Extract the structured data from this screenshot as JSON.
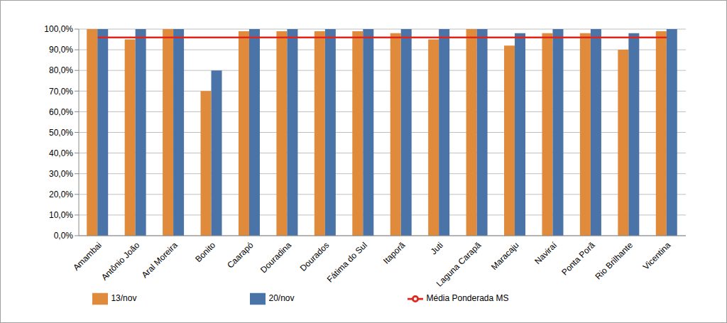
{
  "chart_data": {
    "type": "bar",
    "categories": [
      "Amambai",
      "Antônio João",
      "Aral Moreira",
      "Bonito",
      "Caarapó",
      "Douradina",
      "Dourados",
      "Fátima do Sul",
      "Itaporã",
      "Juti",
      "Laguna Carapã",
      "Maracaju",
      "Naviraí",
      "Ponta Porã",
      "Rio Brilhante",
      "Vicentina"
    ],
    "series": [
      {
        "name": "13/nov",
        "type": "bar",
        "color": "#e08a3c",
        "values": [
          100,
          95,
          100,
          70,
          99,
          99,
          99,
          99,
          98,
          95,
          100,
          92,
          98,
          98,
          90,
          99
        ]
      },
      {
        "name": "20/nov",
        "type": "bar",
        "color": "#4a74a8",
        "values": [
          100,
          100,
          100,
          80,
          100,
          100,
          100,
          100,
          100,
          100,
          100,
          98,
          100,
          100,
          98,
          100
        ]
      },
      {
        "name": "Média Ponderada MS",
        "type": "line",
        "color": "#e3241b",
        "line_style": "solid",
        "values": [
          96,
          96,
          96,
          96,
          96,
          96,
          96,
          96,
          96,
          96,
          96,
          96,
          96,
          96,
          96,
          96
        ]
      }
    ],
    "ylim": [
      0,
      100
    ],
    "yticks": [
      {
        "value": 0,
        "label": "0,0%"
      },
      {
        "value": 10,
        "label": "10,0%"
      },
      {
        "value": 20,
        "label": "20,0%"
      },
      {
        "value": 30,
        "label": "30,0%"
      },
      {
        "value": 40,
        "label": "40,0%"
      },
      {
        "value": 50,
        "label": "50,0%"
      },
      {
        "value": 60,
        "label": "60,0%"
      },
      {
        "value": 70,
        "label": "70,0%"
      },
      {
        "value": 80,
        "label": "80,0%"
      },
      {
        "value": 90,
        "label": "90,0%"
      },
      {
        "value": 100,
        "label": "100,0%"
      }
    ],
    "grid": true,
    "legend": "bottom"
  }
}
